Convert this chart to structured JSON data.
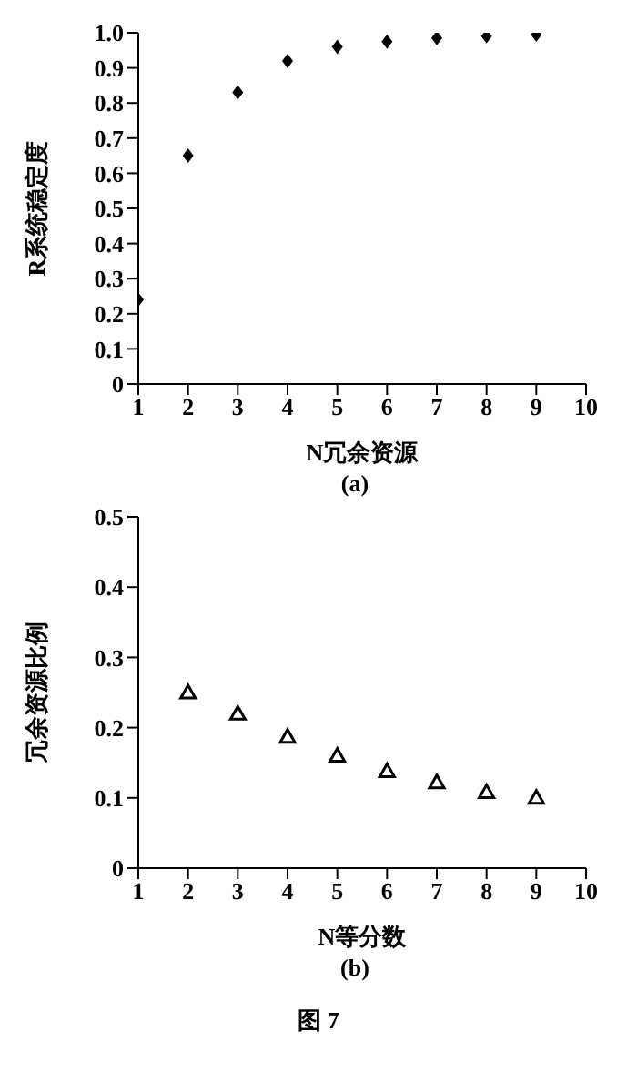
{
  "chart_data": [
    {
      "type": "scatter",
      "subtitle": "(a)",
      "xlabel": "N冗余资源",
      "ylabel": "R系统稳定度",
      "marker": "diamond",
      "x": [
        1,
        2,
        3,
        4,
        5,
        6,
        7,
        8,
        9
      ],
      "series": [
        {
          "color": "#000000",
          "values": [
            0.24,
            0.65,
            0.83,
            0.92,
            0.96,
            0.975,
            0.985,
            0.99,
            0.995
          ]
        }
      ],
      "xlim": [
        1,
        10
      ],
      "xticks": [
        1,
        2,
        3,
        4,
        5,
        6,
        7,
        8,
        9,
        10
      ],
      "ylim": [
        0,
        1
      ],
      "yticks": [
        0,
        0.1,
        0.2,
        0.3,
        0.4,
        0.5,
        0.6,
        0.7,
        0.8,
        0.9,
        {
          "value": 1,
          "label": "1.0"
        }
      ]
    },
    {
      "type": "scatter",
      "subtitle": "(b)",
      "xlabel": "N等分数",
      "ylabel": "冗余资源比例",
      "marker": "triangle",
      "x": [
        2,
        3,
        4,
        5,
        6,
        7,
        8,
        9
      ],
      "series": [
        {
          "color": "#000000",
          "values": [
            0.25,
            0.22,
            0.187,
            0.16,
            0.138,
            0.122,
            0.108,
            0.1
          ]
        }
      ],
      "xlim": [
        1,
        10
      ],
      "xticks": [
        1,
        2,
        3,
        4,
        5,
        6,
        7,
        8,
        9,
        10
      ],
      "ylim": [
        0,
        0.5
      ],
      "yticks": [
        0,
        0.1,
        0.2,
        0.3,
        0.4,
        0.5
      ],
      "annotations": [
        "图 7"
      ]
    }
  ]
}
